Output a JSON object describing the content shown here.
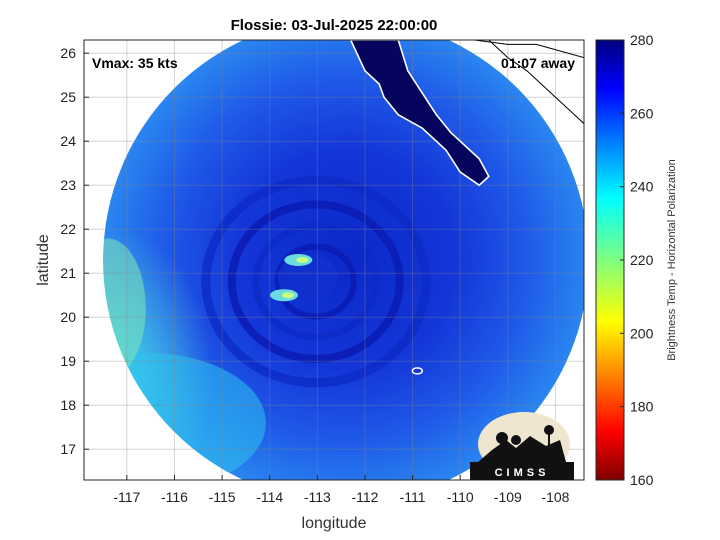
{
  "chart_data": {
    "type": "heatmap",
    "title": "Flossie: 03-Jul-2025 22:00:00",
    "xlabel": "longitude",
    "ylabel": "latitude",
    "xlim": [
      -117.9,
      -107.4
    ],
    "ylim": [
      16.3,
      26.3
    ],
    "xticks": [
      -117,
      -116,
      -115,
      -114,
      -113,
      -112,
      -111,
      -110,
      -109,
      -108
    ],
    "yticks": [
      17,
      18,
      19,
      20,
      21,
      22,
      23,
      24,
      25,
      26
    ],
    "grid": true,
    "annotations": {
      "vmax": "Vmax: 35 kts",
      "time_away": "01:07 away"
    },
    "colorbar": {
      "label": "Brightness Temp - Horizontal Polarization",
      "range": [
        160,
        280
      ],
      "ticks": [
        160,
        180,
        200,
        220,
        240,
        260,
        280
      ],
      "colormap": "jet"
    },
    "storm_center": {
      "lon": -113.2,
      "lat": 20.9
    },
    "swath": {
      "center_lon": -112.4,
      "center_lat": 21.3,
      "radius_deg": 5.1
    },
    "warm_spots": [
      {
        "lon": -113.4,
        "lat": 21.3,
        "value": 225
      },
      {
        "lon": -113.7,
        "lat": 20.5,
        "value": 228
      }
    ],
    "logo_text": "CIMSS"
  },
  "colors": {
    "land": "#05055e",
    "coastline": "#ffffff",
    "background_ocean": "#1f55e8",
    "cold_ring": "#0a1fb8",
    "outer_cyan": "#2ac4f0"
  }
}
